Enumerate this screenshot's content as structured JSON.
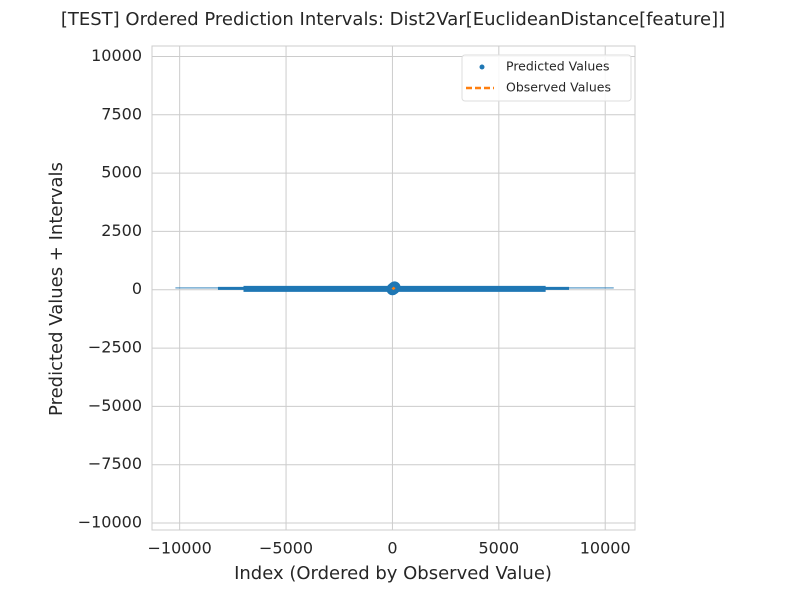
{
  "chart_data": {
    "type": "scatter",
    "title": "[TEST] Ordered Prediction Intervals: Dist2Var[EuclideanDistance[feature]]",
    "x_label": "Index (Ordered by Observed Value)",
    "y_label": "Predicted Values + Intervals",
    "x": [
      0,
      20,
      40,
      60,
      80,
      100
    ],
    "series": [
      {
        "name": "Predicted Values",
        "color": "#1f77b4",
        "values": [
          20,
          40,
          50,
          60,
          80,
          100
        ]
      },
      {
        "name": "Observed Values",
        "color": "#ff7f0e",
        "values": [
          20,
          40,
          50,
          60,
          80,
          100
        ],
        "style": "dashed"
      }
    ],
    "intervals": {
      "color": "#1f77b4",
      "lower": [
        -10200,
        -8200,
        -7000
      ],
      "upper": [
        10400,
        8300,
        7200
      ],
      "y": [
        80,
        60,
        40
      ]
    },
    "xlim": [
      -11300,
      11400
    ],
    "ylim": [
      -10300,
      10450
    ],
    "xticks": [
      {
        "value": -10000,
        "label": "−10000"
      },
      {
        "value": -5000,
        "label": "−5000"
      },
      0,
      5000,
      10000
    ],
    "yticks": [
      {
        "value": -10000,
        "label": "−10000"
      },
      {
        "value": -7500,
        "label": "−7500"
      },
      {
        "value": -5000,
        "label": "−5000"
      },
      {
        "value": -2500,
        "label": "−2500"
      },
      0,
      2500,
      5000,
      7500,
      10000
    ],
    "grid": true,
    "legend": "upper right"
  }
}
